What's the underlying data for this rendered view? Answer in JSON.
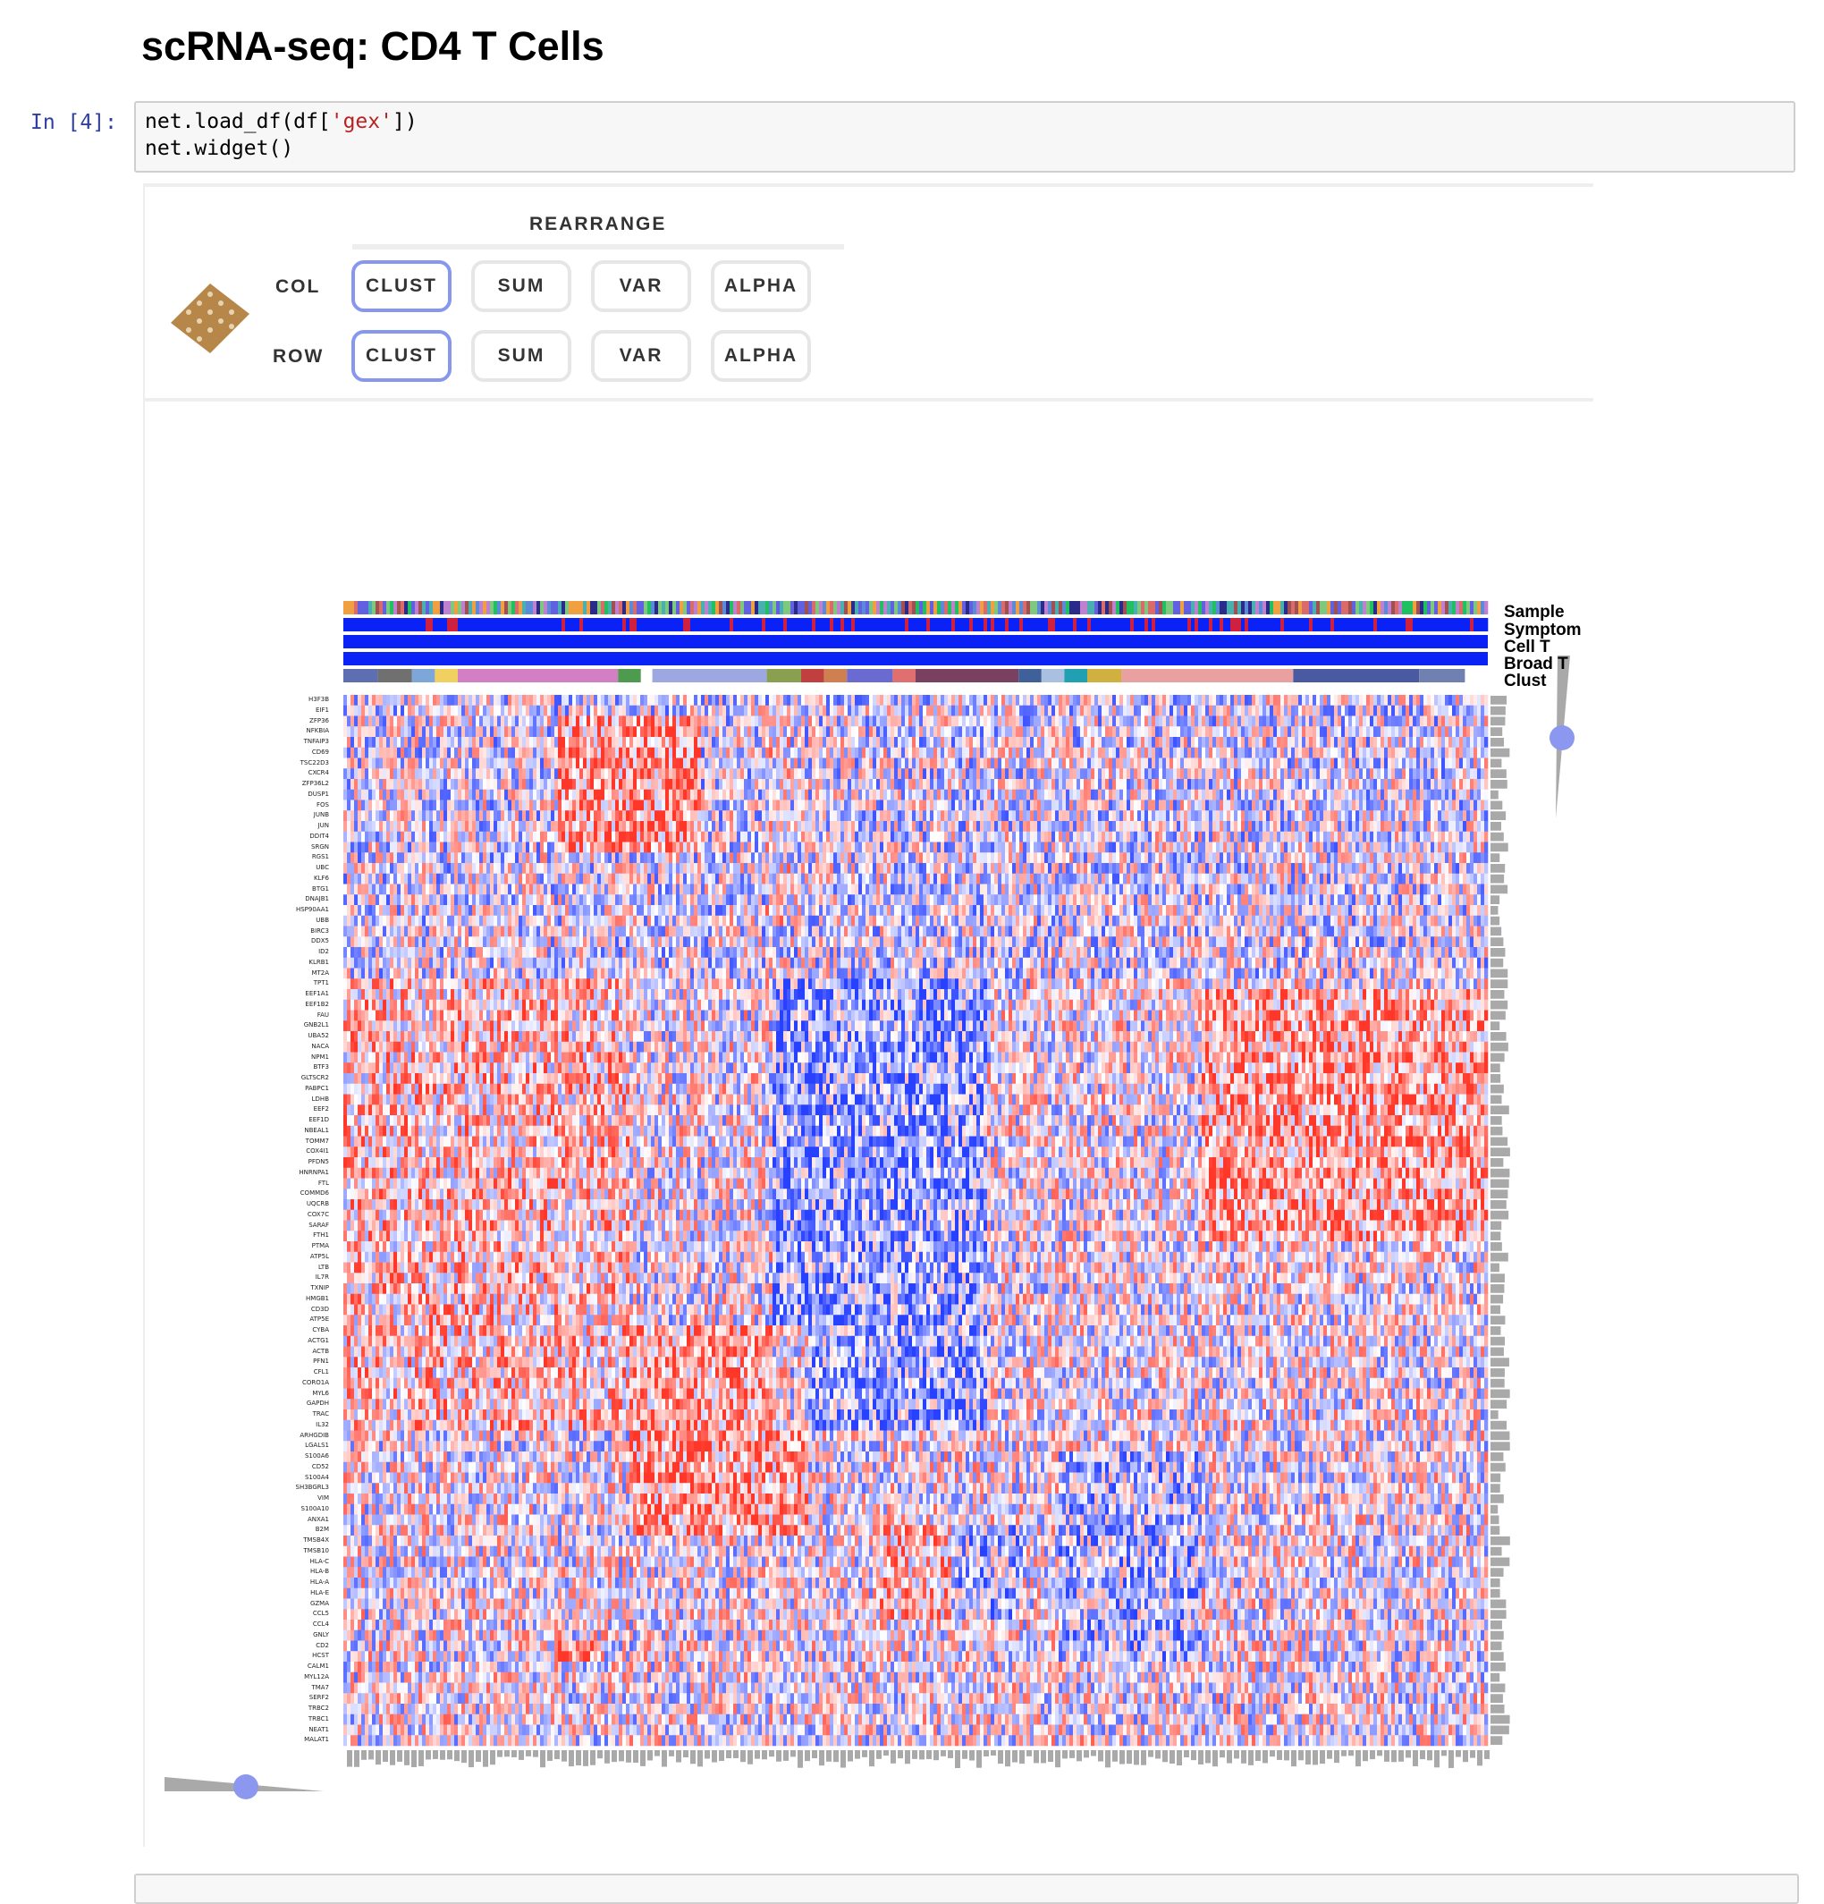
{
  "page": {
    "title": "scRNA-seq: CD4 T Cells"
  },
  "cell": {
    "prompt": "In [4]:",
    "code": {
      "line1_pre": "net.load_df(df[",
      "line1_str": "'gex'",
      "line1_post": "])",
      "line2": "net.widget()"
    }
  },
  "widget": {
    "rearrange_title": "REARRANGE",
    "col_label": "COL",
    "row_label": "ROW",
    "col_buttons": [
      "CLUST",
      "SUM",
      "VAR",
      "ALPHA"
    ],
    "row_buttons": [
      "CLUST",
      "SUM",
      "VAR",
      "ALPHA"
    ],
    "active_col": "CLUST",
    "active_row": "CLUST",
    "category_labels": [
      "Sample",
      "Symptom",
      "Cell T",
      "Broad T",
      "Clust"
    ],
    "genes": [
      "H3F3B",
      "EIF1",
      "ZFP36",
      "NFKBIA",
      "TNFAIP3",
      "CD69",
      "TSC22D3",
      "CXCR4",
      "ZFP36L2",
      "DUSP1",
      "FOS",
      "JUNB",
      "JUN",
      "DDIT4",
      "SRGN",
      "RGS1",
      "UBC",
      "KLF6",
      "BTG1",
      "DNAJB1",
      "HSP90AA1",
      "UBB",
      "BIRC3",
      "DDX5",
      "ID2",
      "KLRB1",
      "MT2A",
      "TPT1",
      "EEF1A1",
      "EEF1B2",
      "FAU",
      "GNB2L1",
      "UBA52",
      "NACA",
      "NPM1",
      "BTF3",
      "GLTSCR2",
      "PABPC1",
      "LDHB",
      "EEF2",
      "EEF1D",
      "NBEAL1",
      "TOMM7",
      "COX4I1",
      "PFDN5",
      "HNRNPA1",
      "FTL",
      "COMMD6",
      "UQCRB",
      "COX7C",
      "SARAF",
      "FTH1",
      "PTMA",
      "ATP5L",
      "LTB",
      "IL7R",
      "TXNIP",
      "HMGB1",
      "CD3D",
      "ATP5E",
      "CYBA",
      "ACTG1",
      "ACTB",
      "PFN1",
      "CFL1",
      "CORO1A",
      "MYL6",
      "GAPDH",
      "TRAC",
      "IL32",
      "ARHGDIB",
      "LGALS1",
      "S100A6",
      "CD52",
      "S100A4",
      "SH3BGRL3",
      "VIM",
      "S100A10",
      "ANXA1",
      "B2M",
      "TMSB4X",
      "TMSB10",
      "HLA-C",
      "HLA-B",
      "HLA-A",
      "HLA-E",
      "GZMA",
      "CCL5",
      "CCL4",
      "GNLY",
      "CD2",
      "HCST",
      "CALM1",
      "MYL12A",
      "TMA7",
      "SERF2",
      "TRBC2",
      "TRBC1",
      "NEAT1",
      "MALAT1"
    ],
    "colors": {
      "active_border": "#8797ee",
      "high": "#e8362a",
      "low": "#2a3cef",
      "symptom_blue": "#0a22f5",
      "slider_dot": "#8c98ef",
      "dendro_gray": "#a9a9a9",
      "logo": "#b7874a"
    }
  }
}
